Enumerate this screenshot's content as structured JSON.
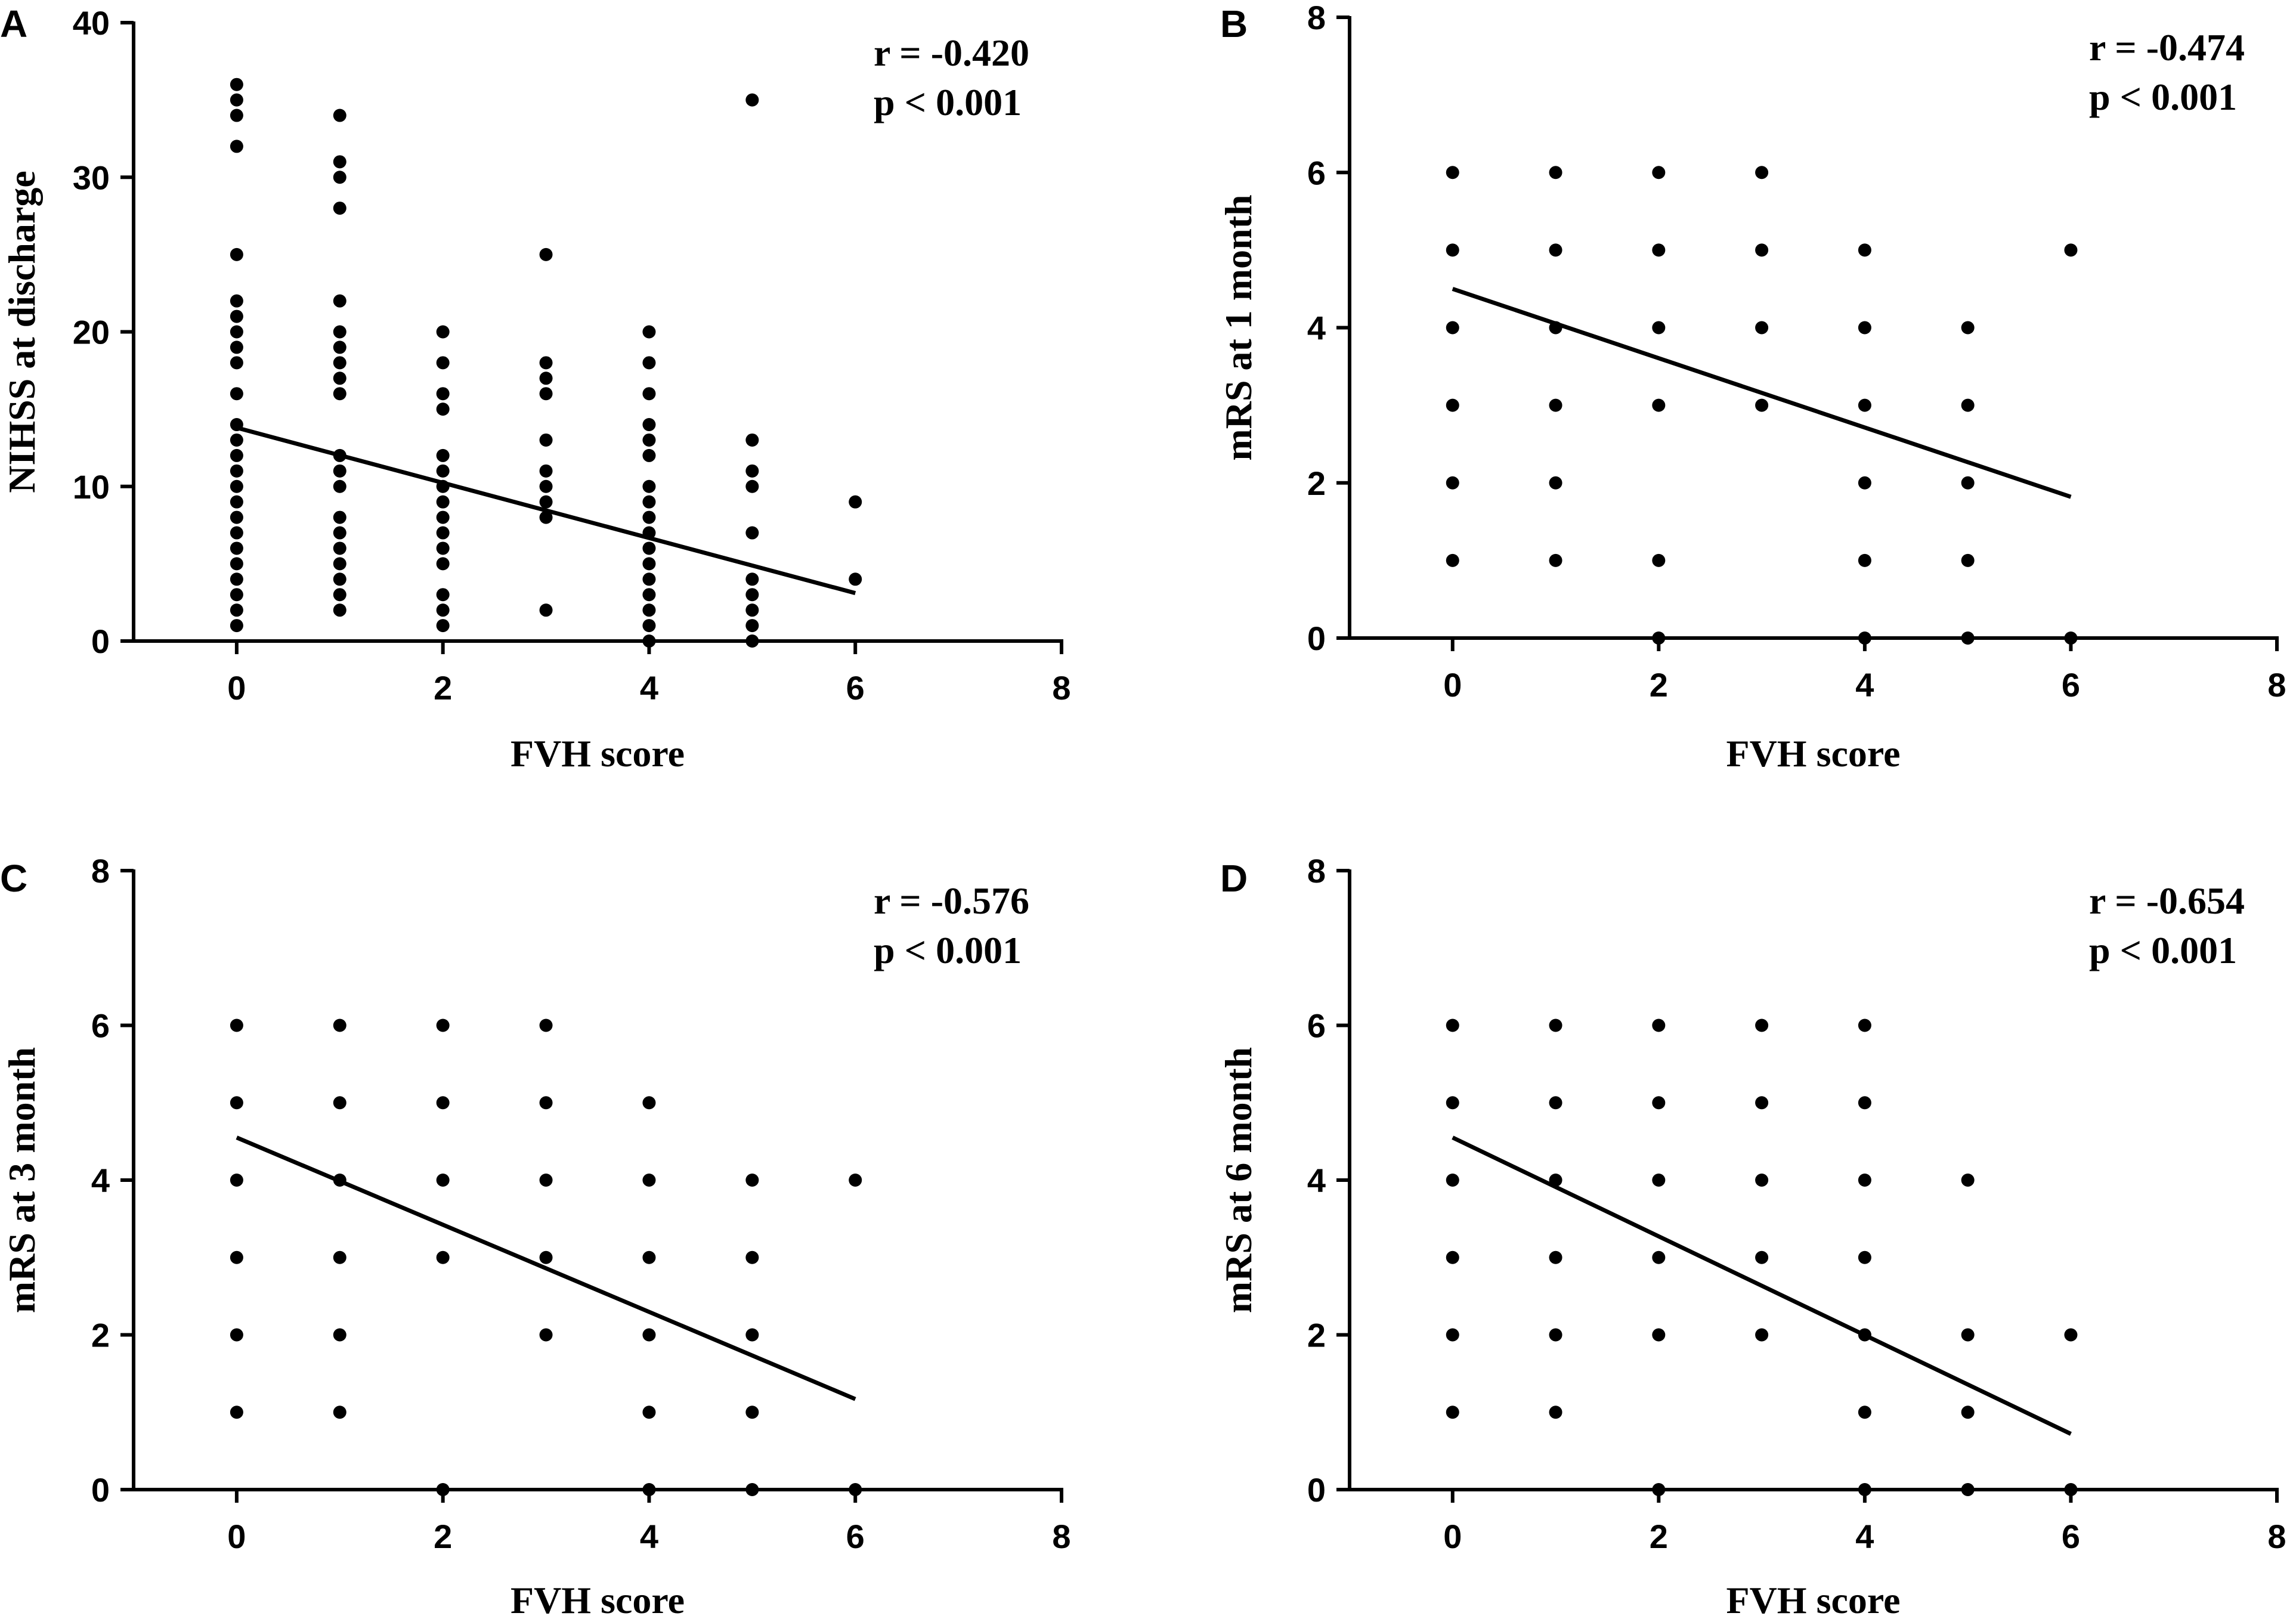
{
  "chart_data": [
    {
      "panel": "A",
      "type": "scatter",
      "title": "",
      "xlabel": "FVH score",
      "ylabel": "NIHSS at discharge",
      "xlim": [
        -1,
        8
      ],
      "ylim": [
        0,
        40
      ],
      "xticks": [
        0,
        2,
        4,
        6,
        8
      ],
      "yticks": [
        0,
        10,
        20,
        30,
        40
      ],
      "grid": false,
      "annotations": {
        "r": "r = -0.420",
        "p": "p < 0.001"
      },
      "points": [
        [
          0,
          36
        ],
        [
          0,
          35
        ],
        [
          0,
          34
        ],
        [
          0,
          32
        ],
        [
          0,
          25
        ],
        [
          0,
          22
        ],
        [
          0,
          21
        ],
        [
          0,
          20
        ],
        [
          0,
          19
        ],
        [
          0,
          18
        ],
        [
          0,
          16
        ],
        [
          0,
          14
        ],
        [
          0,
          13
        ],
        [
          0,
          12
        ],
        [
          0,
          11
        ],
        [
          0,
          10
        ],
        [
          0,
          9
        ],
        [
          0,
          8
        ],
        [
          0,
          7
        ],
        [
          0,
          6
        ],
        [
          0,
          5
        ],
        [
          0,
          4
        ],
        [
          0,
          3
        ],
        [
          0,
          2
        ],
        [
          0,
          1
        ],
        [
          1,
          34
        ],
        [
          1,
          31
        ],
        [
          1,
          30
        ],
        [
          1,
          28
        ],
        [
          1,
          22
        ],
        [
          1,
          20
        ],
        [
          1,
          19
        ],
        [
          1,
          18
        ],
        [
          1,
          17
        ],
        [
          1,
          16
        ],
        [
          1,
          12
        ],
        [
          1,
          11
        ],
        [
          1,
          10
        ],
        [
          1,
          8
        ],
        [
          1,
          7
        ],
        [
          1,
          6
        ],
        [
          1,
          5
        ],
        [
          1,
          4
        ],
        [
          1,
          3
        ],
        [
          1,
          2
        ],
        [
          2,
          20
        ],
        [
          2,
          18
        ],
        [
          2,
          16
        ],
        [
          2,
          15
        ],
        [
          2,
          12
        ],
        [
          2,
          11
        ],
        [
          2,
          10
        ],
        [
          2,
          9
        ],
        [
          2,
          8
        ],
        [
          2,
          7
        ],
        [
          2,
          6
        ],
        [
          2,
          5
        ],
        [
          2,
          3
        ],
        [
          2,
          2
        ],
        [
          2,
          1
        ],
        [
          3,
          25
        ],
        [
          3,
          18
        ],
        [
          3,
          17
        ],
        [
          3,
          16
        ],
        [
          3,
          13
        ],
        [
          3,
          11
        ],
        [
          3,
          10
        ],
        [
          3,
          9
        ],
        [
          3,
          8
        ],
        [
          3,
          2
        ],
        [
          4,
          20
        ],
        [
          4,
          18
        ],
        [
          4,
          16
        ],
        [
          4,
          14
        ],
        [
          4,
          13
        ],
        [
          4,
          12
        ],
        [
          4,
          10
        ],
        [
          4,
          9
        ],
        [
          4,
          8
        ],
        [
          4,
          7
        ],
        [
          4,
          6
        ],
        [
          4,
          5
        ],
        [
          4,
          4
        ],
        [
          4,
          3
        ],
        [
          4,
          2
        ],
        [
          4,
          1
        ],
        [
          4,
          0
        ],
        [
          5,
          35
        ],
        [
          5,
          13
        ],
        [
          5,
          11
        ],
        [
          5,
          10
        ],
        [
          5,
          7
        ],
        [
          5,
          4
        ],
        [
          5,
          3
        ],
        [
          5,
          2
        ],
        [
          5,
          1
        ],
        [
          5,
          0
        ],
        [
          6,
          9
        ],
        [
          6,
          4
        ]
      ],
      "regression": {
        "x": [
          0,
          6
        ],
        "y": [
          13.8,
          3.1
        ]
      }
    },
    {
      "panel": "B",
      "type": "scatter",
      "title": "",
      "xlabel": "FVH score",
      "ylabel": "mRS at 1 month",
      "xlim": [
        -1,
        8
      ],
      "ylim": [
        0,
        8
      ],
      "xticks": [
        0,
        2,
        4,
        6,
        8
      ],
      "yticks": [
        0,
        2,
        4,
        6,
        8
      ],
      "grid": false,
      "annotations": {
        "r": "r = -0.474",
        "p": "p < 0.001"
      },
      "points": [
        [
          0,
          6
        ],
        [
          0,
          5
        ],
        [
          0,
          4
        ],
        [
          0,
          3
        ],
        [
          0,
          2
        ],
        [
          0,
          1
        ],
        [
          1,
          6
        ],
        [
          1,
          5
        ],
        [
          1,
          4
        ],
        [
          1,
          3
        ],
        [
          1,
          2
        ],
        [
          1,
          1
        ],
        [
          2,
          6
        ],
        [
          2,
          5
        ],
        [
          2,
          4
        ],
        [
          2,
          3
        ],
        [
          2,
          1
        ],
        [
          2,
          0
        ],
        [
          3,
          6
        ],
        [
          3,
          5
        ],
        [
          3,
          4
        ],
        [
          3,
          3
        ],
        [
          4,
          5
        ],
        [
          4,
          4
        ],
        [
          4,
          3
        ],
        [
          4,
          2
        ],
        [
          4,
          1
        ],
        [
          4,
          0
        ],
        [
          5,
          4
        ],
        [
          5,
          3
        ],
        [
          5,
          2
        ],
        [
          5,
          1
        ],
        [
          5,
          0
        ],
        [
          6,
          5
        ],
        [
          6,
          0
        ]
      ],
      "regression": {
        "x": [
          0,
          6
        ],
        "y": [
          4.5,
          1.82
        ]
      }
    },
    {
      "panel": "C",
      "type": "scatter",
      "title": "",
      "xlabel": "FVH score",
      "ylabel": "mRS at 3 month",
      "xlim": [
        -1,
        8
      ],
      "ylim": [
        0,
        8
      ],
      "xticks": [
        0,
        2,
        4,
        6,
        8
      ],
      "yticks": [
        0,
        2,
        4,
        6,
        8
      ],
      "grid": false,
      "annotations": {
        "r": "r = -0.576",
        "p": "p < 0.001"
      },
      "points": [
        [
          0,
          6
        ],
        [
          0,
          5
        ],
        [
          0,
          4
        ],
        [
          0,
          3
        ],
        [
          0,
          2
        ],
        [
          0,
          1
        ],
        [
          1,
          6
        ],
        [
          1,
          5
        ],
        [
          1,
          4
        ],
        [
          1,
          3
        ],
        [
          1,
          2
        ],
        [
          1,
          1
        ],
        [
          2,
          6
        ],
        [
          2,
          5
        ],
        [
          2,
          4
        ],
        [
          2,
          3
        ],
        [
          2,
          0
        ],
        [
          3,
          6
        ],
        [
          3,
          5
        ],
        [
          3,
          4
        ],
        [
          3,
          3
        ],
        [
          3,
          2
        ],
        [
          4,
          5
        ],
        [
          4,
          4
        ],
        [
          4,
          3
        ],
        [
          4,
          2
        ],
        [
          4,
          1
        ],
        [
          4,
          0
        ],
        [
          5,
          4
        ],
        [
          5,
          3
        ],
        [
          5,
          2
        ],
        [
          5,
          1
        ],
        [
          5,
          0
        ],
        [
          6,
          4
        ],
        [
          6,
          0
        ]
      ],
      "regression": {
        "x": [
          0,
          6
        ],
        "y": [
          4.55,
          1.17
        ]
      }
    },
    {
      "panel": "D",
      "type": "scatter",
      "title": "",
      "xlabel": "FVH score",
      "ylabel": "mRS at 6 month",
      "xlim": [
        -1,
        8
      ],
      "ylim": [
        0,
        8
      ],
      "xticks": [
        0,
        2,
        4,
        6,
        8
      ],
      "yticks": [
        0,
        2,
        4,
        6,
        8
      ],
      "grid": false,
      "annotations": {
        "r": "r = -0.654",
        "p": "p < 0.001"
      },
      "points": [
        [
          0,
          6
        ],
        [
          0,
          5
        ],
        [
          0,
          4
        ],
        [
          0,
          3
        ],
        [
          0,
          2
        ],
        [
          0,
          1
        ],
        [
          1,
          6
        ],
        [
          1,
          5
        ],
        [
          1,
          4
        ],
        [
          1,
          3
        ],
        [
          1,
          2
        ],
        [
          1,
          1
        ],
        [
          2,
          6
        ],
        [
          2,
          5
        ],
        [
          2,
          4
        ],
        [
          2,
          3
        ],
        [
          2,
          2
        ],
        [
          2,
          0
        ],
        [
          3,
          6
        ],
        [
          3,
          5
        ],
        [
          3,
          4
        ],
        [
          3,
          3
        ],
        [
          3,
          2
        ],
        [
          4,
          6
        ],
        [
          4,
          5
        ],
        [
          4,
          4
        ],
        [
          4,
          3
        ],
        [
          4,
          2
        ],
        [
          4,
          1
        ],
        [
          4,
          0
        ],
        [
          5,
          4
        ],
        [
          5,
          2
        ],
        [
          5,
          1
        ],
        [
          5,
          0
        ],
        [
          6,
          2
        ],
        [
          6,
          0
        ]
      ],
      "regression": {
        "x": [
          0,
          6
        ],
        "y": [
          4.55,
          0.72
        ]
      }
    }
  ]
}
